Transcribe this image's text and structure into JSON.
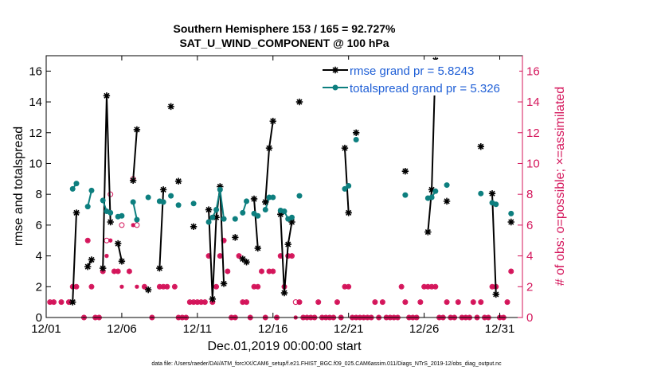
{
  "chart_data": {
    "type": "line",
    "title": "Southern Hemisphere 153 / 165 = 92.727%",
    "subtitle": "SAT_U_WIND_COMPONENT @ 100 hPa",
    "xlabel": "Dec.01,2019 00:00:00 start",
    "ylabel": "rmse and totalspread",
    "y2label": "# of obs: o=possible; ×=assimilated",
    "footnote": "data file: /Users/raeder/DAI/ATM_forcXX/CAM6_setup/f.e21.FHIST_BGC.f09_025.CAM6assim.011/Diags_NTrS_2019-12/obs_diag_output.nc",
    "xlim": [
      0,
      31.5
    ],
    "ylim": [
      0,
      17
    ],
    "y2lim": [
      0,
      17
    ],
    "x_ticks": [
      0,
      5,
      10,
      15,
      20,
      25,
      30
    ],
    "x_tick_labels": [
      "12/01",
      "12/06",
      "12/11",
      "12/16",
      "12/21",
      "12/26",
      "12/31"
    ],
    "y_ticks": [
      0,
      2,
      4,
      6,
      8,
      10,
      12,
      14,
      16
    ],
    "y_tick_labels": [
      "0",
      "2",
      "4",
      "6",
      "8",
      "10",
      "12",
      "14",
      "16"
    ],
    "y2_ticks": [
      0,
      2,
      4,
      6,
      8,
      10,
      12,
      14,
      16
    ],
    "y2_tick_labels": [
      "0",
      "2",
      "4",
      "6",
      "8",
      "10",
      "12",
      "14",
      "16"
    ],
    "series": [
      {
        "name": "rmse grand pr = 5.8243",
        "color": "#000000",
        "marker": "asterisk",
        "segments": [
          [
            [
              1.75,
              1.0
            ],
            [
              2.0,
              6.8
            ]
          ],
          [
            [
              2.75,
              3.3
            ],
            [
              3.0,
              3.75
            ]
          ],
          [
            [
              3.75,
              3.2
            ],
            [
              4.0,
              14.4
            ],
            [
              4.25,
              6.2
            ]
          ],
          [
            [
              4.75,
              4.8
            ],
            [
              5.0,
              3.65
            ]
          ],
          [
            [
              5.75,
              8.9
            ],
            [
              6.0,
              12.2
            ]
          ],
          [
            [
              6.75,
              1.8
            ]
          ],
          [
            [
              7.5,
              3.2
            ],
            [
              7.75,
              8.3
            ]
          ],
          [
            [
              8.25,
              13.7
            ]
          ],
          [
            [
              8.75,
              8.85
            ]
          ],
          [
            [
              9.75,
              5.9
            ]
          ],
          [
            [
              10.75,
              7.0
            ],
            [
              11.0,
              1.2
            ],
            [
              11.25,
              6.5
            ],
            [
              11.5,
              8.5
            ],
            [
              11.75,
              2.2
            ]
          ],
          [
            [
              12.5,
              5.2
            ]
          ],
          [
            [
              13.0,
              3.8
            ],
            [
              13.25,
              3.6
            ]
          ],
          [
            [
              13.75,
              7.7
            ],
            [
              14.0,
              4.5
            ]
          ],
          [
            [
              14.5,
              7.5
            ],
            [
              14.75,
              11.0
            ],
            [
              15.0,
              12.75
            ]
          ],
          [
            [
              15.5,
              6.7
            ],
            [
              15.75,
              1.6
            ],
            [
              16.0,
              4.75
            ],
            [
              16.25,
              6.2
            ]
          ],
          [
            [
              16.75,
              14.0
            ]
          ],
          [
            [
              19.75,
              11.0
            ],
            [
              20.0,
              6.8
            ]
          ],
          [
            [
              20.5,
              12.0
            ]
          ],
          [
            [
              23.75,
              9.5
            ]
          ],
          [
            [
              25.25,
              5.55
            ],
            [
              25.5,
              8.3
            ],
            [
              25.75,
              16.7
            ]
          ],
          [
            [
              26.5,
              7.55
            ]
          ],
          [
            [
              28.75,
              11.1
            ]
          ],
          [
            [
              29.5,
              8.05
            ],
            [
              29.75,
              1.5
            ]
          ],
          [
            [
              30.75,
              6.2
            ]
          ]
        ]
      },
      {
        "name": "totalspread grand pr = 5.326",
        "color": "#0d7f7f",
        "marker": "dot",
        "segments": [
          [
            [
              1.75,
              8.35
            ],
            [
              2.0,
              8.7
            ]
          ],
          [
            [
              2.75,
              7.2
            ],
            [
              3.0,
              8.25
            ]
          ],
          [
            [
              3.75,
              7.6
            ],
            [
              4.0,
              6.9
            ],
            [
              4.25,
              6.8
            ]
          ],
          [
            [
              4.75,
              6.55
            ],
            [
              5.0,
              6.6
            ]
          ],
          [
            [
              5.75,
              7.5
            ],
            [
              6.0,
              6.35
            ]
          ],
          [
            [
              6.75,
              7.8
            ]
          ],
          [
            [
              7.5,
              7.55
            ],
            [
              7.75,
              7.5
            ]
          ],
          [
            [
              8.25,
              7.9
            ]
          ],
          [
            [
              8.75,
              7.3
            ]
          ],
          [
            [
              9.75,
              7.4
            ]
          ],
          [
            [
              10.75,
              6.2
            ],
            [
              11.0,
              6.5
            ],
            [
              11.25,
              7.0
            ],
            [
              11.5,
              8.3
            ],
            [
              11.75,
              6.4
            ]
          ],
          [
            [
              12.5,
              6.4
            ]
          ],
          [
            [
              13.0,
              6.8
            ],
            [
              13.25,
              7.55
            ]
          ],
          [
            [
              13.75,
              6.75
            ],
            [
              14.0,
              6.6
            ]
          ],
          [
            [
              14.5,
              7.0
            ],
            [
              14.75,
              7.8
            ],
            [
              15.0,
              7.8
            ]
          ],
          [
            [
              15.5,
              6.95
            ],
            [
              15.75,
              6.9
            ],
            [
              16.0,
              6.4
            ],
            [
              16.25,
              6.5
            ]
          ],
          [
            [
              16.75,
              7.9
            ]
          ],
          [
            [
              19.75,
              8.35
            ],
            [
              20.0,
              8.55
            ]
          ],
          [
            [
              20.5,
              11.55
            ]
          ],
          [
            [
              23.75,
              7.95
            ]
          ],
          [
            [
              25.25,
              7.75
            ],
            [
              25.5,
              7.8
            ],
            [
              25.75,
              8.2
            ]
          ],
          [
            [
              26.5,
              8.6
            ]
          ],
          [
            [
              28.75,
              8.05
            ]
          ],
          [
            [
              29.5,
              7.45
            ],
            [
              29.75,
              7.35
            ]
          ],
          [
            [
              30.75,
              6.75
            ]
          ]
        ]
      }
    ],
    "obs_possible": [
      [
        0.25,
        1
      ],
      [
        0.5,
        1
      ],
      [
        1.0,
        1
      ],
      [
        1.5,
        1
      ],
      [
        1.75,
        2
      ],
      [
        2.0,
        2
      ],
      [
        2.5,
        0
      ],
      [
        2.75,
        5
      ],
      [
        3.0,
        2
      ],
      [
        3.25,
        0
      ],
      [
        3.5,
        0
      ],
      [
        3.75,
        3
      ],
      [
        4.0,
        5
      ],
      [
        4.25,
        8
      ],
      [
        4.5,
        3
      ],
      [
        4.75,
        3
      ],
      [
        5.0,
        6
      ],
      [
        5.5,
        3
      ],
      [
        5.75,
        9
      ],
      [
        6.0,
        6
      ],
      [
        6.5,
        2
      ],
      [
        7.0,
        0
      ],
      [
        7.5,
        2
      ],
      [
        7.75,
        2
      ],
      [
        8.0,
        2
      ],
      [
        8.5,
        2
      ],
      [
        8.75,
        0
      ],
      [
        9.0,
        0
      ],
      [
        9.25,
        0
      ],
      [
        9.5,
        1
      ],
      [
        9.75,
        1
      ],
      [
        10.0,
        1
      ],
      [
        10.25,
        1
      ],
      [
        10.5,
        1
      ],
      [
        10.75,
        4
      ],
      [
        11.0,
        1
      ],
      [
        11.25,
        2
      ],
      [
        11.5,
        4
      ],
      [
        11.75,
        5
      ],
      [
        12.0,
        3
      ],
      [
        12.25,
        0
      ],
      [
        12.5,
        0
      ],
      [
        12.75,
        4
      ],
      [
        13.0,
        1
      ],
      [
        13.25,
        1
      ],
      [
        13.5,
        0
      ],
      [
        13.75,
        2
      ],
      [
        14.0,
        2
      ],
      [
        14.25,
        3
      ],
      [
        14.5,
        0
      ],
      [
        14.75,
        3
      ],
      [
        15.0,
        3
      ],
      [
        15.25,
        0
      ],
      [
        15.5,
        4
      ],
      [
        15.75,
        2
      ],
      [
        16.0,
        4
      ],
      [
        16.25,
        4
      ],
      [
        16.5,
        1
      ],
      [
        16.75,
        1
      ],
      [
        17.0,
        0
      ],
      [
        17.25,
        0
      ],
      [
        17.5,
        0
      ],
      [
        17.75,
        0
      ],
      [
        18.0,
        1
      ],
      [
        18.25,
        0
      ],
      [
        18.5,
        0
      ],
      [
        18.75,
        0
      ],
      [
        19.0,
        0
      ],
      [
        19.25,
        1
      ],
      [
        19.5,
        0
      ],
      [
        19.75,
        2
      ],
      [
        20.0,
        2
      ],
      [
        20.25,
        0
      ],
      [
        20.5,
        0
      ],
      [
        20.75,
        0
      ],
      [
        21.0,
        0
      ],
      [
        21.25,
        0
      ],
      [
        21.5,
        0
      ],
      [
        21.75,
        1
      ],
      [
        22.0,
        0
      ],
      [
        22.25,
        1
      ],
      [
        22.5,
        0
      ],
      [
        22.75,
        0
      ],
      [
        23.0,
        0
      ],
      [
        23.25,
        0
      ],
      [
        23.5,
        2
      ],
      [
        23.75,
        1
      ],
      [
        24.0,
        0
      ],
      [
        24.25,
        0
      ],
      [
        24.5,
        0
      ],
      [
        24.75,
        1
      ],
      [
        25.0,
        2
      ],
      [
        25.25,
        2
      ],
      [
        25.5,
        2
      ],
      [
        25.75,
        2
      ],
      [
        26.0,
        0
      ],
      [
        26.25,
        0
      ],
      [
        26.5,
        1
      ],
      [
        26.75,
        0
      ],
      [
        27.0,
        0
      ],
      [
        27.25,
        1
      ],
      [
        27.5,
        0
      ],
      [
        27.75,
        0
      ],
      [
        28.0,
        0
      ],
      [
        28.25,
        1
      ],
      [
        28.5,
        0
      ],
      [
        28.75,
        1
      ],
      [
        29.0,
        0
      ],
      [
        29.25,
        0
      ],
      [
        29.5,
        2
      ],
      [
        29.75,
        2
      ],
      [
        30.0,
        0
      ],
      [
        30.25,
        0
      ],
      [
        30.5,
        1
      ],
      [
        30.75,
        3
      ]
    ],
    "obs_assimilated": [
      [
        0.25,
        1
      ],
      [
        0.5,
        1
      ],
      [
        1.0,
        1
      ],
      [
        1.5,
        1
      ],
      [
        1.75,
        2
      ],
      [
        2.0,
        2
      ],
      [
        2.5,
        0
      ],
      [
        2.75,
        5
      ],
      [
        3.0,
        2
      ],
      [
        3.25,
        0
      ],
      [
        3.5,
        0
      ],
      [
        3.75,
        3
      ],
      [
        4.0,
        4
      ],
      [
        4.25,
        5
      ],
      [
        4.5,
        3
      ],
      [
        4.75,
        3
      ],
      [
        5.0,
        2
      ],
      [
        5.5,
        3
      ],
      [
        5.75,
        6
      ],
      [
        6.0,
        2
      ],
      [
        6.5,
        2
      ],
      [
        7.0,
        0
      ],
      [
        7.5,
        2
      ],
      [
        7.75,
        2
      ],
      [
        8.0,
        2
      ],
      [
        8.5,
        2
      ],
      [
        8.75,
        0
      ],
      [
        9.0,
        0
      ],
      [
        9.25,
        0
      ],
      [
        9.5,
        1
      ],
      [
        9.75,
        1
      ],
      [
        10.0,
        1
      ],
      [
        10.25,
        1
      ],
      [
        10.5,
        1
      ],
      [
        10.75,
        4
      ],
      [
        11.0,
        1
      ],
      [
        11.25,
        2
      ],
      [
        11.5,
        4
      ],
      [
        11.75,
        5
      ],
      [
        12.0,
        3
      ],
      [
        12.25,
        0
      ],
      [
        12.5,
        0
      ],
      [
        12.75,
        4
      ],
      [
        13.0,
        1
      ],
      [
        13.25,
        1
      ],
      [
        13.5,
        0
      ],
      [
        13.75,
        2
      ],
      [
        14.0,
        2
      ],
      [
        14.25,
        3
      ],
      [
        14.5,
        0
      ],
      [
        14.75,
        3
      ],
      [
        15.0,
        3
      ],
      [
        15.25,
        0
      ],
      [
        15.5,
        4
      ],
      [
        15.75,
        2
      ],
      [
        16.0,
        4
      ],
      [
        16.25,
        4
      ],
      [
        16.5,
        0
      ],
      [
        16.75,
        1
      ],
      [
        17.0,
        0
      ],
      [
        17.25,
        0
      ],
      [
        17.5,
        0
      ],
      [
        17.75,
        0
      ],
      [
        18.0,
        1
      ],
      [
        18.25,
        0
      ],
      [
        18.5,
        0
      ],
      [
        18.75,
        0
      ],
      [
        19.0,
        0
      ],
      [
        19.25,
        1
      ],
      [
        19.5,
        0
      ],
      [
        19.75,
        2
      ],
      [
        20.0,
        2
      ],
      [
        20.25,
        0
      ],
      [
        20.5,
        0
      ],
      [
        20.75,
        0
      ],
      [
        21.0,
        0
      ],
      [
        21.25,
        0
      ],
      [
        21.5,
        0
      ],
      [
        21.75,
        1
      ],
      [
        22.0,
        0
      ],
      [
        22.25,
        1
      ],
      [
        22.5,
        0
      ],
      [
        22.75,
        0
      ],
      [
        23.0,
        0
      ],
      [
        23.25,
        0
      ],
      [
        23.5,
        2
      ],
      [
        23.75,
        1
      ],
      [
        24.0,
        0
      ],
      [
        24.25,
        0
      ],
      [
        24.5,
        0
      ],
      [
        24.75,
        1
      ],
      [
        25.0,
        2
      ],
      [
        25.25,
        2
      ],
      [
        25.5,
        2
      ],
      [
        25.75,
        2
      ],
      [
        26.0,
        0
      ],
      [
        26.25,
        0
      ],
      [
        26.5,
        1
      ],
      [
        26.75,
        0
      ],
      [
        27.0,
        0
      ],
      [
        27.25,
        1
      ],
      [
        27.5,
        0
      ],
      [
        27.75,
        0
      ],
      [
        28.0,
        0
      ],
      [
        28.25,
        1
      ],
      [
        28.5,
        0
      ],
      [
        28.75,
        1
      ],
      [
        29.0,
        0
      ],
      [
        29.25,
        0
      ],
      [
        29.5,
        2
      ],
      [
        29.75,
        2
      ],
      [
        30.0,
        0
      ],
      [
        30.25,
        0
      ],
      [
        30.5,
        1
      ],
      [
        30.75,
        3
      ]
    ],
    "obs_color": "#d4145a",
    "legend_placement": "top-right"
  }
}
